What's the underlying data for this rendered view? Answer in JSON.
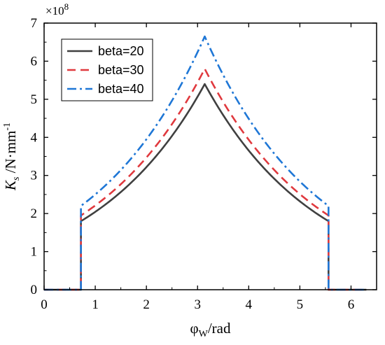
{
  "chart_data": {
    "type": "line",
    "title": "",
    "xlabel": {
      "base": "φ",
      "sub": "W",
      "rest": "/rad"
    },
    "ylabel": {
      "base": "K",
      "sub": "s",
      "rest": " /N·mm",
      "sup": "-1"
    },
    "y_multiplier": {
      "base": "×10",
      "exp": "8"
    },
    "xlim": [
      0,
      6.5
    ],
    "ylim": [
      0,
      7
    ],
    "xticks": [
      "0",
      "1",
      "2",
      "3",
      "4",
      "5",
      "6"
    ],
    "yticks": [
      "0",
      "1",
      "2",
      "3",
      "4",
      "5",
      "6",
      "7"
    ],
    "legend_position": "top-left",
    "grid": false,
    "support_start": 0.72,
    "support_end": 5.56,
    "series": [
      {
        "name": "beta=20",
        "color": "#404040",
        "dash": "solid",
        "peak_x": 3.14,
        "peak": 5.4,
        "edge": 1.8
      },
      {
        "name": "beta=30",
        "color": "#e0393e",
        "dash": "dashed",
        "peak_x": 3.14,
        "peak": 5.8,
        "edge": 1.95
      },
      {
        "name": "beta=40",
        "color": "#1f77d6",
        "dash": "dashdot",
        "peak_x": 3.14,
        "peak": 6.65,
        "edge": 2.2
      }
    ]
  }
}
